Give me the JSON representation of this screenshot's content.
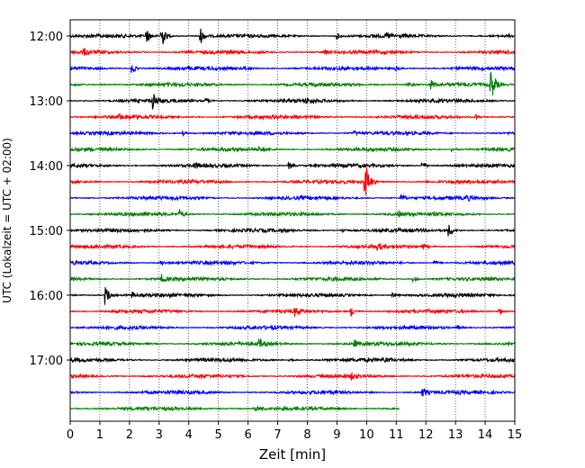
{
  "chart_data": {
    "type": "line",
    "title": "",
    "xlabel": "Zeit  [min]",
    "ylabel": "UTC (Lokalzeit = UTC + 02:00)",
    "xlim": [
      0,
      15
    ],
    "x_ticks": [
      0,
      1,
      2,
      3,
      4,
      5,
      6,
      7,
      8,
      9,
      10,
      11,
      12,
      13,
      14,
      15
    ],
    "y_ticks": [
      "12:00",
      "13:00",
      "14:00",
      "15:00",
      "16:00",
      "17:00"
    ],
    "grid": "vertical-dotted",
    "row_minutes": 15,
    "row_colors": [
      "#000000",
      "#ff0000",
      "#0000ff",
      "#008000"
    ],
    "rows": [
      {
        "start": "12:00",
        "color": "#000000",
        "end_min": 15,
        "events": [
          {
            "t": 2.6,
            "amp": 0.55
          },
          {
            "t": 3.1,
            "amp": 1.0
          },
          {
            "t": 4.4,
            "amp": 0.7
          },
          {
            "t": 9.0,
            "amp": 0.25
          },
          {
            "t": 10.7,
            "amp": 0.2
          }
        ]
      },
      {
        "start": "12:15",
        "color": "#ff0000",
        "end_min": 15,
        "events": [
          {
            "t": 0.5,
            "amp": 0.2
          },
          {
            "t": 8.6,
            "amp": 0.2
          }
        ]
      },
      {
        "start": "12:30",
        "color": "#0000ff",
        "end_min": 15,
        "events": [
          {
            "t": 2.1,
            "amp": 0.45
          },
          {
            "t": 5.9,
            "amp": 0.15
          },
          {
            "t": 11.0,
            "amp": 0.15
          }
        ]
      },
      {
        "start": "12:45",
        "color": "#008000",
        "end_min": 15,
        "events": [
          {
            "t": 11.4,
            "amp": 0.3
          },
          {
            "t": 12.2,
            "amp": 0.4
          },
          {
            "t": 14.2,
            "amp": 1.5
          }
        ]
      },
      {
        "start": "13:00",
        "color": "#000000",
        "end_min": 15,
        "events": [
          {
            "t": 2.8,
            "amp": 0.7
          },
          {
            "t": 4.6,
            "amp": 0.2
          },
          {
            "t": 8.0,
            "amp": 0.2
          }
        ]
      },
      {
        "start": "13:15",
        "color": "#ff0000",
        "end_min": 15,
        "events": [
          {
            "t": 1.7,
            "amp": 0.2
          },
          {
            "t": 13.7,
            "amp": 0.2
          }
        ]
      },
      {
        "start": "13:30",
        "color": "#0000ff",
        "end_min": 15,
        "events": [
          {
            "t": 3.8,
            "amp": 0.2
          },
          {
            "t": 9.6,
            "amp": 0.15
          }
        ]
      },
      {
        "start": "13:45",
        "color": "#008000",
        "end_min": 15,
        "events": [
          {
            "t": 6.4,
            "amp": 0.2
          },
          {
            "t": 12.9,
            "amp": 0.15
          }
        ]
      },
      {
        "start": "14:00",
        "color": "#000000",
        "end_min": 15,
        "events": [
          {
            "t": 7.4,
            "amp": 0.3
          },
          {
            "t": 11.9,
            "amp": 0.35
          },
          {
            "t": 4.2,
            "amp": 0.2
          }
        ]
      },
      {
        "start": "14:15",
        "color": "#ff0000",
        "end_min": 15,
        "events": [
          {
            "t": 9.95,
            "amp": 2.3
          }
        ]
      },
      {
        "start": "14:30",
        "color": "#0000ff",
        "end_min": 15,
        "events": [
          {
            "t": 11.2,
            "amp": 0.3
          },
          {
            "t": 13.4,
            "amp": 0.2
          }
        ]
      },
      {
        "start": "14:45",
        "color": "#008000",
        "end_min": 15,
        "events": [
          {
            "t": 3.7,
            "amp": 0.4
          },
          {
            "t": 11.1,
            "amp": 0.2
          }
        ]
      },
      {
        "start": "15:00",
        "color": "#000000",
        "end_min": 15,
        "events": [
          {
            "t": 12.8,
            "amp": 0.5
          },
          {
            "t": 9.2,
            "amp": 0.2
          }
        ]
      },
      {
        "start": "15:15",
        "color": "#ff0000",
        "end_min": 15,
        "events": [
          {
            "t": 10.4,
            "amp": 0.25
          },
          {
            "t": 11.9,
            "amp": 0.25
          }
        ]
      },
      {
        "start": "15:30",
        "color": "#0000ff",
        "end_min": 15,
        "events": [
          {
            "t": 3.1,
            "amp": 0.2
          },
          {
            "t": 12.3,
            "amp": 0.2
          }
        ]
      },
      {
        "start": "15:45",
        "color": "#008000",
        "end_min": 15,
        "events": [
          {
            "t": 3.1,
            "amp": 0.35
          },
          {
            "t": 11.6,
            "amp": 0.2
          }
        ]
      },
      {
        "start": "16:00",
        "color": "#000000",
        "end_min": 15,
        "events": [
          {
            "t": 1.2,
            "amp": 0.9
          },
          {
            "t": 2.1,
            "amp": 0.25
          },
          {
            "t": 10.9,
            "amp": 0.25
          }
        ]
      },
      {
        "start": "16:15",
        "color": "#ff0000",
        "end_min": 15,
        "events": [
          {
            "t": 7.6,
            "amp": 0.35
          },
          {
            "t": 9.5,
            "amp": 0.4
          },
          {
            "t": 14.5,
            "amp": 0.3
          }
        ]
      },
      {
        "start": "16:30",
        "color": "#0000ff",
        "end_min": 15,
        "events": [
          {
            "t": 13.1,
            "amp": 0.15
          }
        ]
      },
      {
        "start": "16:45",
        "color": "#008000",
        "end_min": 15,
        "events": [
          {
            "t": 6.4,
            "amp": 0.35
          },
          {
            "t": 9.6,
            "amp": 0.3
          }
        ]
      },
      {
        "start": "17:00",
        "color": "#000000",
        "end_min": 15,
        "events": [
          {
            "t": 10.6,
            "amp": 0.2
          },
          {
            "t": 7.4,
            "amp": 0.15
          }
        ]
      },
      {
        "start": "17:15",
        "color": "#ff0000",
        "end_min": 15,
        "events": [
          {
            "t": 9.5,
            "amp": 0.2
          }
        ]
      },
      {
        "start": "17:30",
        "color": "#0000ff",
        "end_min": 15,
        "events": [
          {
            "t": 11.9,
            "amp": 0.4
          }
        ]
      },
      {
        "start": "17:45",
        "color": "#008000",
        "end_min": 11.1,
        "events": [
          {
            "t": 6.3,
            "amp": 0.2
          }
        ]
      }
    ]
  }
}
